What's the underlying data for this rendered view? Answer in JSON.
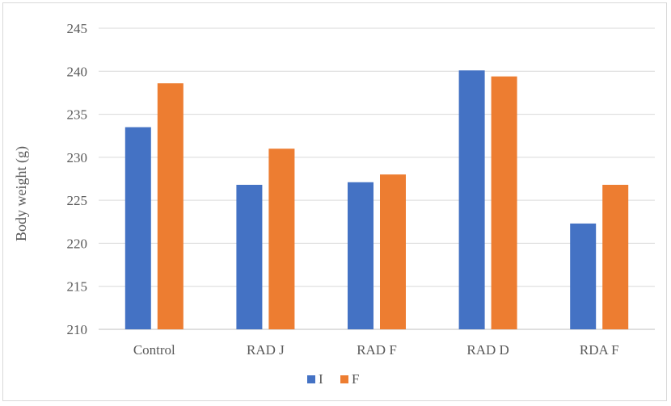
{
  "chart_data": {
    "type": "bar",
    "title": "",
    "xlabel": "",
    "ylabel": "Body weight (g)",
    "ylim": [
      210,
      245
    ],
    "yticks": [
      210,
      215,
      220,
      225,
      230,
      235,
      240,
      245
    ],
    "categories": [
      "Control",
      "RAD J",
      "RAD F",
      "RAD D",
      "RDA F"
    ],
    "series": [
      {
        "name": "I",
        "color": "#4472c4",
        "values": [
          233.5,
          226.8,
          227.1,
          240.1,
          222.3
        ]
      },
      {
        "name": "F",
        "color": "#ed7d31",
        "values": [
          238.6,
          231.0,
          228.0,
          239.4,
          226.8
        ]
      }
    ],
    "grid": true,
    "legend_position": "bottom"
  }
}
